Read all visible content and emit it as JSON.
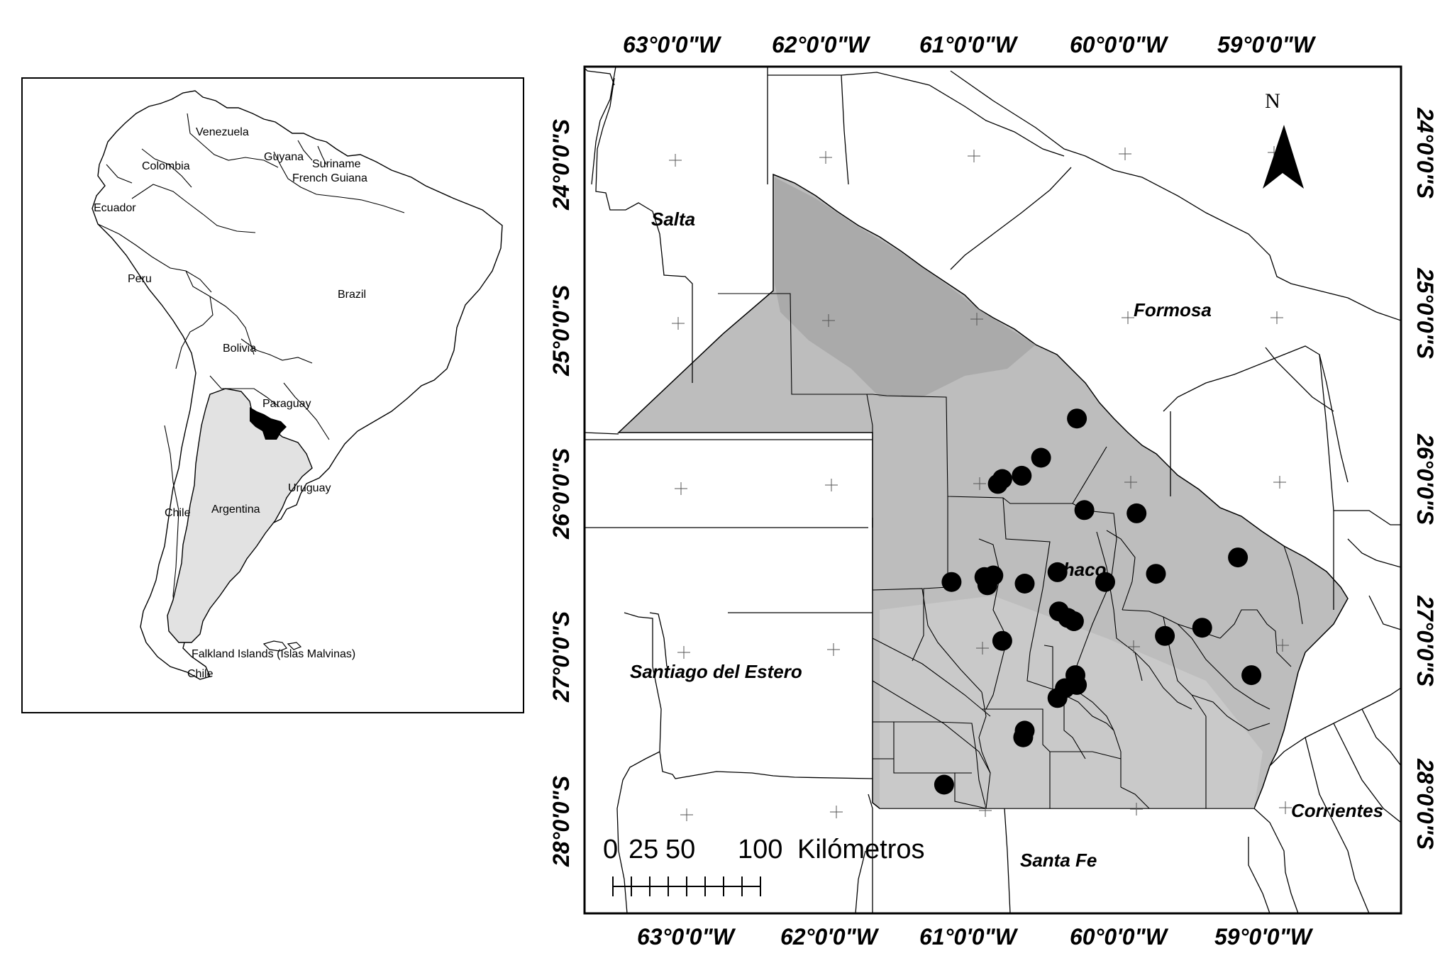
{
  "inset_map": {
    "countries": [
      "Venezuela",
      "Colombia",
      "Guyana",
      "Suriname",
      "French Guiana",
      "Ecuador",
      "Peru",
      "Brazil",
      "Bolivia",
      "Paraguay",
      "Chile",
      "Argentina",
      "Uruguay",
      "Falkland Islands (Islas Malvinas)",
      "Chile"
    ],
    "highlight_color": "#e2e2e2",
    "study_area_color": "#000000"
  },
  "main_map": {
    "top_longitude_labels": [
      "63°0'0\"W",
      "62°0'0\"W",
      "61°0'0\"W",
      "60°0'0\"W",
      "59°0'0\"W"
    ],
    "bottom_longitude_labels": [
      "63°0'0\"W",
      "62°0'0\"W",
      "61°0'0\"W",
      "60°0'0\"W",
      "59°0'0\"W"
    ],
    "latitude_labels": [
      "24°0'0\"S",
      "25°0'0\"S",
      "26°0'0\"S",
      "27°0'0\"S",
      "28°0'0\"S"
    ],
    "provinces": [
      "Salta",
      "Formosa",
      "Chaco",
      "Santiago del Estero",
      "Corrientes",
      "Santa Fe"
    ],
    "north_label": "N",
    "scale_bar": {
      "labels": [
        "0",
        "25",
        "50",
        "100"
      ],
      "unit": "Kilómetros",
      "ticks": 9
    },
    "chaco_fill": "#bdbdbd",
    "sample_sites": [
      {
        "lon": -60.36,
        "lat": -25.58
      },
      {
        "lon": -60.6,
        "lat": -25.82
      },
      {
        "lon": -60.73,
        "lat": -25.93
      },
      {
        "lon": -60.86,
        "lat": -25.95
      },
      {
        "lon": -60.89,
        "lat": -25.98
      },
      {
        "lon": -60.31,
        "lat": -26.14
      },
      {
        "lon": -59.96,
        "lat": -26.16
      },
      {
        "lon": -59.28,
        "lat": -26.43
      },
      {
        "lon": -60.49,
        "lat": -26.52
      },
      {
        "lon": -60.92,
        "lat": -26.54
      },
      {
        "lon": -60.98,
        "lat": -26.55
      },
      {
        "lon": -60.96,
        "lat": -26.6
      },
      {
        "lon": -60.71,
        "lat": -26.59
      },
      {
        "lon": -61.2,
        "lat": -26.58
      },
      {
        "lon": -60.17,
        "lat": -26.58
      },
      {
        "lon": -59.83,
        "lat": -26.53
      },
      {
        "lon": -60.48,
        "lat": -26.76
      },
      {
        "lon": -60.42,
        "lat": -26.8
      },
      {
        "lon": -60.38,
        "lat": -26.82
      },
      {
        "lon": -59.52,
        "lat": -26.86
      },
      {
        "lon": -59.77,
        "lat": -26.91
      },
      {
        "lon": -60.86,
        "lat": -26.94
      },
      {
        "lon": -60.37,
        "lat": -27.15
      },
      {
        "lon": -59.19,
        "lat": -27.15
      },
      {
        "lon": -60.36,
        "lat": -27.21
      },
      {
        "lon": -60.44,
        "lat": -27.23
      },
      {
        "lon": -60.49,
        "lat": -27.29
      },
      {
        "lon": -60.71,
        "lat": -27.49
      },
      {
        "lon": -60.72,
        "lat": -27.53
      },
      {
        "lon": -61.25,
        "lat": -27.82
      }
    ]
  }
}
